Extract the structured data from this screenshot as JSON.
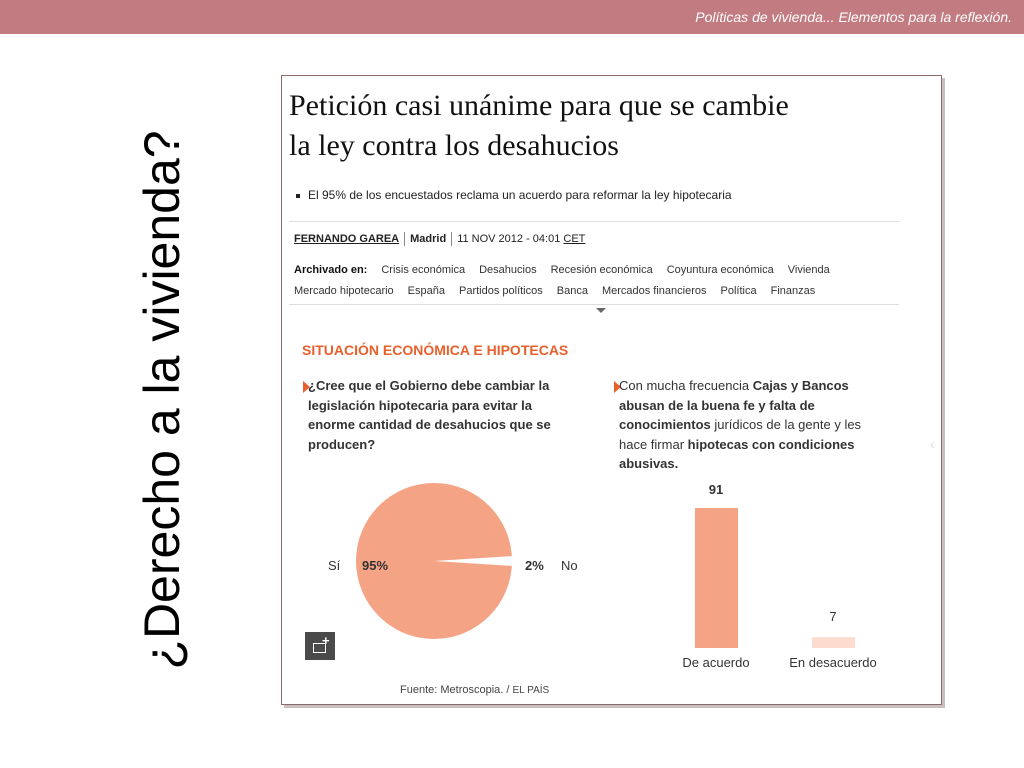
{
  "slide": {
    "header_text": "Políticas de vivienda... Elementos  para la reflexión.",
    "vertical_title": "¿Derecho a la vivienda?"
  },
  "article": {
    "headline_line1": "Petición casi unánime para que se cambie",
    "headline_line2": "la ley contra los desahucios",
    "bullet": "El 95% de los encuestados reclama un acuerdo para reformar la ley hipotecaria",
    "author": "FERNANDO GAREA",
    "city": "Madrid",
    "date": "11 NOV 2012 - 04:01",
    "timezone": "CET",
    "tags_label": "Archivado en:",
    "tags_row1": [
      "Crisis económica",
      "Desahucios",
      "Recesión económica",
      "Coyuntura económica",
      "Vivienda"
    ],
    "tags_row2": [
      "Mercado hipotecario",
      "España",
      "Partidos políticos",
      "Banca",
      "Mercados financieros",
      "Política",
      "Finanzas"
    ]
  },
  "infographic": {
    "section_title": "SITUACIÓN ECONÓMICA E HIPOTECAS",
    "question_left": "¿Cree que el Gobierno debe cambiar la legislación hipotecaria para evitar la enorme cantidad de desahucios que se producen?",
    "question_right_parts": {
      "p1": "Con mucha frecuencia ",
      "b1": "Cajas y Bancos abusan de la buena fe y falta de conocimientos",
      "p2": " jurídicos de la gente y les hace firmar ",
      "b2": "hipotecas con condiciones abusivas."
    },
    "source_text": "Fuente: Metroscopia. /",
    "source_brand": "EL PAÍS"
  },
  "chart_data": [
    {
      "type": "pie",
      "categories": [
        "Sí",
        "No"
      ],
      "values": [
        95,
        2
      ],
      "value_labels": [
        "95%",
        "2%"
      ],
      "colors": [
        "#f4a384",
        "#ffffff"
      ]
    },
    {
      "type": "bar",
      "categories": [
        "De acuerdo",
        "En desacuerdo"
      ],
      "values": [
        91,
        7
      ],
      "colors": [
        "#f4a384",
        "#fcdccf"
      ]
    }
  ]
}
